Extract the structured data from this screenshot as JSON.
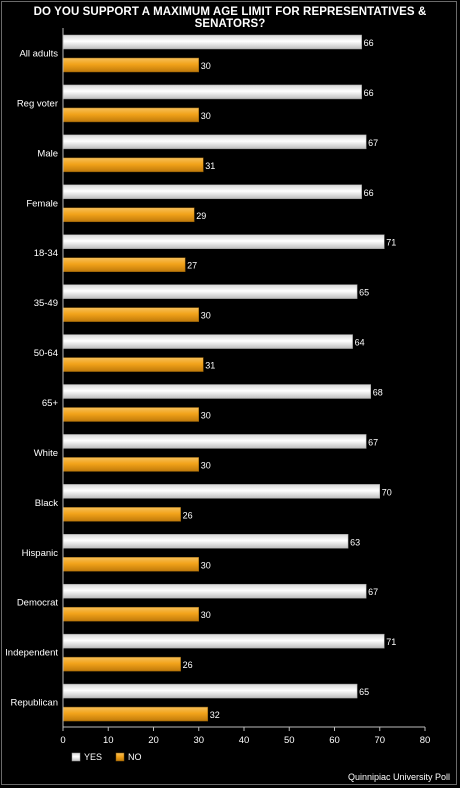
{
  "chart_data": {
    "type": "bar",
    "orientation": "horizontal",
    "title": "DO YOU SUPPORT A MAXIMUM AGE LIMIT FOR REPRESENTATIVES & SENATORS?",
    "categories": [
      "All adults",
      "Reg voter",
      "Male",
      "Female",
      "18-34",
      "35-49",
      "50-64",
      "65+",
      "White",
      "Black",
      "Hispanic",
      "Democrat",
      "Independent",
      "Republican"
    ],
    "series": [
      {
        "name": "YES",
        "color": "#ffffff",
        "values": [
          66,
          66,
          67,
          66,
          71,
          65,
          64,
          68,
          67,
          70,
          63,
          67,
          71,
          65
        ]
      },
      {
        "name": "NO",
        "color": "#f5a623",
        "values": [
          30,
          30,
          31,
          29,
          27,
          30,
          31,
          30,
          30,
          26,
          30,
          30,
          26,
          32
        ]
      }
    ],
    "xlim": [
      0,
      80
    ],
    "xticks": [
      0,
      10,
      20,
      30,
      40,
      50,
      60,
      70,
      80
    ],
    "grid": false,
    "legend_position": "bottom-left",
    "data_labels": true
  },
  "source": "Quinnipiac University Poll"
}
